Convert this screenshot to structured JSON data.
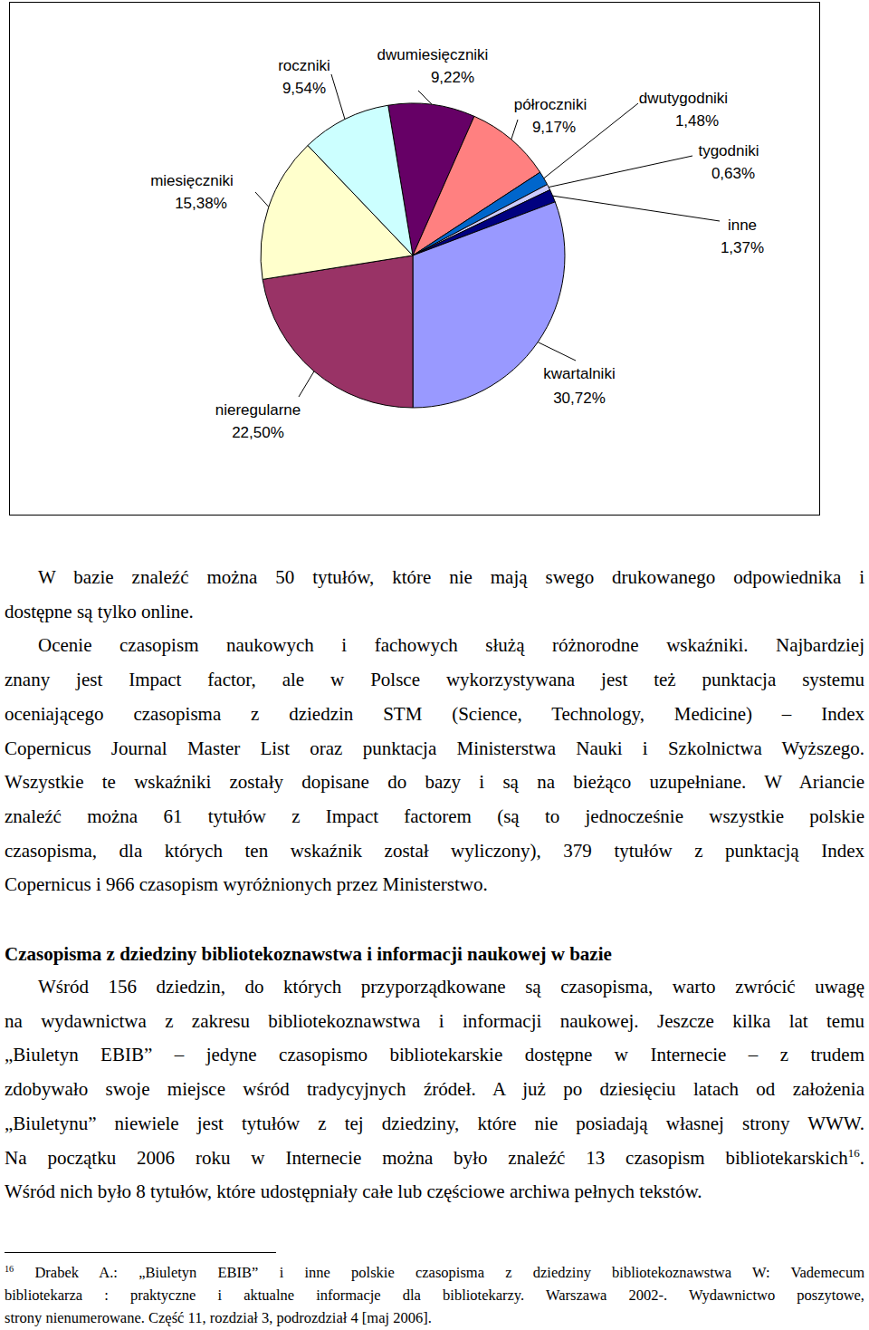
{
  "chart_data": {
    "type": "pie",
    "categories": [
      "dwumiesięczniki",
      "półroczniki",
      "dwutygodniki",
      "tygodniki",
      "inne",
      "kwartalniki",
      "nieregularne",
      "miesięczniki",
      "roczniki"
    ],
    "values": [
      9.22,
      9.17,
      1.48,
      0.63,
      1.37,
      30.72,
      22.5,
      15.38,
      9.54
    ],
    "value_labels": [
      "9,22%",
      "9,17%",
      "1,48%",
      "0,63%",
      "1,37%",
      "30,72%",
      "22,50%",
      "15,38%",
      "9,54%"
    ],
    "colors": [
      "#660066",
      "#ff8080",
      "#0066cc",
      "#ccccff",
      "#000080",
      "#9999ff",
      "#993366",
      "#ffffcc",
      "#ccffff"
    ],
    "data_labels": true
  },
  "document": {
    "paragraphs": [
      {
        "lines": [
          "W bazie znaleźć można 50 tytułów, które nie mają swego drukowanego odpowiednika i",
          "dostępne są tylko online."
        ]
      },
      {
        "lines": [
          "Ocenie czasopism naukowych i fachowych służą różnorodne wskaźniki. Najbardziej",
          "znany jest Impact factor, ale w Polsce wykorzystywana jest też punktacja systemu",
          "oceniającego czasopisma z dziedzin STM (Science, Technology, Medicine) – Index",
          "Copernicus Journal Master List oraz punktacja Ministerstwa Nauki i Szkolnictwa Wyższego.",
          "Wszystkie te wskaźniki zostały dopisane do bazy i są na bieżąco uzupełniane. W Ariancie",
          "znaleźć można 61 tytułów z Impact factorem (są to jednocześnie wszystkie polskie",
          "czasopisma, dla których ten wskaźnik został wyliczony), 379 tytułów z punktacją Index",
          "Copernicus i 966 czasopism wyróżnionych przez Ministerstwo."
        ]
      }
    ],
    "heading": "Czasopisma z dziedziny bibliotekoznawstwa i informacji naukowej w bazie",
    "section_paragraphs": [
      {
        "lines": [
          "Wśród 156 dziedzin, do których przyporządkowane są czasopisma, warto zwrócić uwagę",
          "na wydawnictwa z zakresu bibliotekoznawstwa i informacji naukowej. Jeszcze kilka lat temu",
          "„Biuletyn EBIB” – jedyne czasopismo bibliotekarskie dostępne w Internecie – z trudem",
          "zdobywało swoje miejsce wśród tradycyjnych źródeł. A już po dziesięciu latach od założenia",
          "„Biuletynu” niewiele jest tytułów z tej dziedziny, które nie posiadają własnej strony WWW.",
          {
            "text": "Na początku 2006 roku w Internecie można było znaleźć 13 czasopism bibliotekarskich",
            "footnote_ref": "16",
            "tail": "."
          },
          "Wśród nich było 8 tytułów, które udostępniały całe lub częściowe archiwa pełnych tekstów."
        ]
      }
    ],
    "footnote": {
      "number": "16",
      "lines": [
        " Drabek A.: „Biuletyn EBIB” i inne polskie czasopisma z dziedziny bibliotekoznawstwa W: Vademecum",
        "bibliotekarza : praktyczne i aktualne informacje dla bibliotekarzy. Warszawa 2002-. Wydawnictwo poszytowe,",
        "strony nienumerowane. Część 11, rozdział 3, podrozdział 4 [maj 2006]."
      ]
    }
  }
}
